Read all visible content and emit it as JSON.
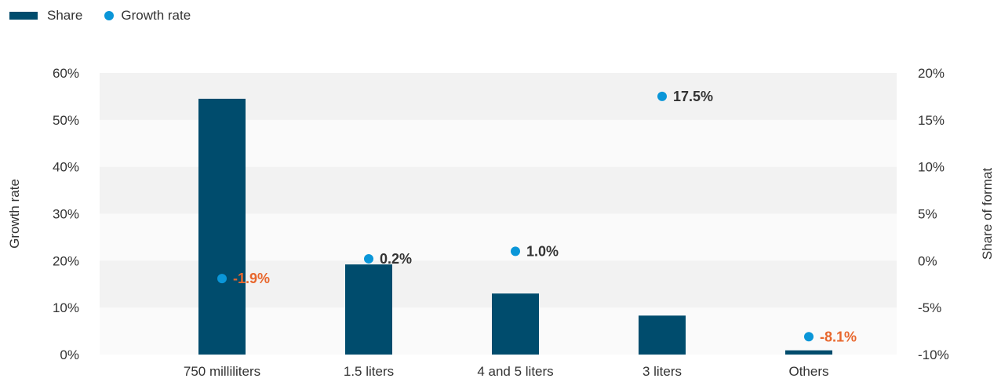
{
  "legend": {
    "share_label": "Share",
    "growth_label": "Growth rate"
  },
  "colors": {
    "bar": "#004c6d",
    "dot": "#0a96d8",
    "positive_label": "#333333",
    "negative_label": "#e8672d",
    "band_dark": "#f2f2f2",
    "band_light": "#fafafa"
  },
  "chart_data": {
    "type": "bar",
    "categories": [
      "750 milliliters",
      "1.5 liters",
      "4 and 5 liters",
      "3 liters",
      "Others"
    ],
    "series": [
      {
        "name": "Share",
        "axis": "left",
        "values": [
          54.5,
          19.2,
          13.0,
          8.3,
          0.9
        ]
      },
      {
        "name": "Growth rate",
        "axis": "right",
        "type": "scatter",
        "values": [
          -1.9,
          0.2,
          1.0,
          17.5,
          -8.1
        ],
        "labels": [
          "-1.9%",
          "0.2%",
          "1.0%",
          "17.5%",
          "-8.1%"
        ]
      }
    ],
    "left_axis": {
      "title": "Growth rate",
      "ylim": [
        0,
        60
      ],
      "ticks": [
        "0%",
        "10%",
        "20%",
        "30%",
        "40%",
        "50%",
        "60%"
      ]
    },
    "right_axis": {
      "title": "Share of format",
      "ylim": [
        -10,
        20
      ],
      "ticks": [
        "-10%",
        "-5%",
        "0%",
        "5%",
        "10%",
        "15%",
        "20%"
      ]
    },
    "legend_position": "top-left",
    "grid": "horizontal bands"
  }
}
